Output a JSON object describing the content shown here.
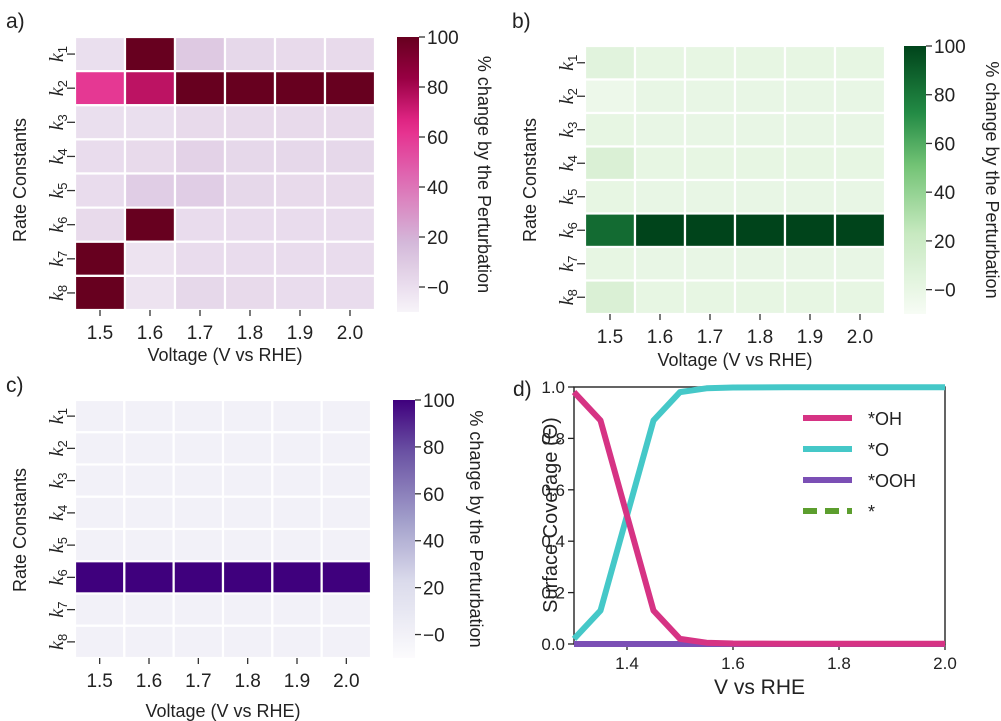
{
  "chart_data": [
    {
      "panel": "a)",
      "type": "heatmap",
      "xlabel": "Voltage (V vs RHE)",
      "ylabel": "Rate Constants",
      "x": [
        "1.5",
        "1.6",
        "1.7",
        "1.8",
        "1.9",
        "2.0"
      ],
      "y": [
        {
          "sym": "k",
          "sub": "1"
        },
        {
          "sym": "k",
          "sub": "2"
        },
        {
          "sym": "k",
          "sub": "3"
        },
        {
          "sym": "k",
          "sub": "4"
        },
        {
          "sym": "k",
          "sub": "5"
        },
        {
          "sym": "k",
          "sub": "6"
        },
        {
          "sym": "k",
          "sub": "7"
        },
        {
          "sym": "k",
          "sub": "8"
        }
      ],
      "values": [
        [
          0,
          100,
          10,
          3,
          2,
          2
        ],
        [
          60,
          75,
          100,
          100,
          100,
          100
        ],
        [
          0,
          0,
          2,
          2,
          2,
          2
        ],
        [
          1,
          2,
          6,
          3,
          3,
          3
        ],
        [
          1,
          8,
          8,
          3,
          2,
          2
        ],
        [
          2,
          100,
          1,
          1,
          1,
          1
        ],
        [
          100,
          -2,
          1,
          1,
          1,
          1
        ],
        [
          100,
          -2,
          3,
          2,
          1,
          1
        ]
      ],
      "colorbar": {
        "label": "% change by the Perturbation",
        "ticks": [
          "100",
          "80",
          "60",
          "40",
          "20",
          "0"
        ],
        "tick_values": [
          100,
          80,
          60,
          40,
          20,
          0
        ],
        "range": [
          -10,
          100
        ],
        "colormap": "PuRd"
      }
    },
    {
      "panel": "b)",
      "type": "heatmap",
      "xlabel": "Voltage (V vs RHE)",
      "ylabel": "Rate Constants",
      "x": [
        "1.5",
        "1.6",
        "1.7",
        "1.8",
        "1.9",
        "2.0"
      ],
      "y": [
        {
          "sym": "k",
          "sub": "1"
        },
        {
          "sym": "k",
          "sub": "2"
        },
        {
          "sym": "k",
          "sub": "3"
        },
        {
          "sym": "k",
          "sub": "4"
        },
        {
          "sym": "k",
          "sub": "5"
        },
        {
          "sym": "k",
          "sub": "6"
        },
        {
          "sym": "k",
          "sub": "7"
        },
        {
          "sym": "k",
          "sub": "8"
        }
      ],
      "values": [
        [
          5,
          1,
          1,
          1,
          1,
          1
        ],
        [
          -3,
          0,
          0,
          0,
          0,
          0
        ],
        [
          1,
          0,
          0,
          0,
          0,
          0
        ],
        [
          10,
          1,
          1,
          1,
          1,
          1
        ],
        [
          1,
          0,
          0,
          0,
          0,
          0
        ],
        [
          85,
          100,
          100,
          100,
          100,
          100
        ],
        [
          1,
          0,
          0,
          0,
          0,
          0
        ],
        [
          10,
          1,
          1,
          1,
          1,
          1
        ]
      ],
      "colorbar": {
        "label": "% change by the Perturbation",
        "ticks": [
          "100",
          "80",
          "60",
          "40",
          "20",
          "0"
        ],
        "tick_values": [
          100,
          80,
          60,
          40,
          20,
          0
        ],
        "range": [
          -10,
          100
        ],
        "colormap": "Greens"
      }
    },
    {
      "panel": "c)",
      "type": "heatmap",
      "xlabel": "Voltage (V vs RHE)",
      "ylabel": "Rate Constants",
      "x": [
        "1.5",
        "1.6",
        "1.7",
        "1.8",
        "1.9",
        "2.0"
      ],
      "y": [
        {
          "sym": "k",
          "sub": "1"
        },
        {
          "sym": "k",
          "sub": "2"
        },
        {
          "sym": "k",
          "sub": "3"
        },
        {
          "sym": "k",
          "sub": "4"
        },
        {
          "sym": "k",
          "sub": "5"
        },
        {
          "sym": "k",
          "sub": "6"
        },
        {
          "sym": "k",
          "sub": "7"
        },
        {
          "sym": "k",
          "sub": "8"
        }
      ],
      "values": [
        [
          0,
          0,
          0,
          0,
          0,
          0
        ],
        [
          0,
          0,
          0,
          0,
          0,
          0
        ],
        [
          0,
          0,
          0,
          0,
          0,
          0
        ],
        [
          0,
          0,
          0,
          0,
          0,
          0
        ],
        [
          0,
          0,
          0,
          0,
          0,
          0
        ],
        [
          100,
          100,
          100,
          100,
          100,
          100
        ],
        [
          0,
          0,
          0,
          0,
          0,
          0
        ],
        [
          0,
          0,
          0,
          0,
          0,
          0
        ]
      ],
      "colorbar": {
        "label": "% change by the Perturbation",
        "ticks": [
          "100",
          "80",
          "60",
          "40",
          "20",
          "0"
        ],
        "tick_values": [
          100,
          80,
          60,
          40,
          20,
          0
        ],
        "range": [
          -10,
          100
        ],
        "colormap": "Purples"
      }
    },
    {
      "panel": "d)",
      "type": "line",
      "xlabel": "V vs RHE",
      "ylabel": "Surface Coverage (Θ)",
      "xlim": [
        1.3,
        2.0
      ],
      "ylim": [
        0.0,
        1.0
      ],
      "xticks": [
        "1.4",
        "1.6",
        "1.8",
        "2.0"
      ],
      "xtick_values": [
        1.4,
        1.6,
        1.8,
        2.0
      ],
      "yticks": [
        "0.0",
        "0.2",
        "0.4",
        "0.6",
        "0.8",
        "1.0"
      ],
      "ytick_values": [
        0.0,
        0.2,
        0.4,
        0.6,
        0.8,
        1.0
      ],
      "x": [
        1.3,
        1.35,
        1.4,
        1.45,
        1.5,
        1.55,
        1.6,
        1.7,
        1.8,
        1.9,
        2.0
      ],
      "series": [
        {
          "name": "*OH",
          "color": "#d63384",
          "dash": false,
          "values": [
            0.98,
            0.87,
            0.5,
            0.13,
            0.02,
            0.005,
            0.002,
            0.001,
            0.001,
            0.001,
            0.001
          ]
        },
        {
          "name": "*O",
          "color": "#45c8c8",
          "dash": false,
          "values": [
            0.02,
            0.13,
            0.5,
            0.87,
            0.98,
            0.995,
            0.998,
            0.999,
            0.999,
            0.999,
            0.999
          ]
        },
        {
          "name": "*OOH",
          "color": "#7b4fb5",
          "dash": false,
          "values": [
            0,
            0,
            0,
            0,
            0,
            0,
            0,
            0,
            0,
            0,
            0
          ]
        },
        {
          "name": "*",
          "color": "#5c9e2e",
          "dash": true,
          "values": [
            0,
            0,
            0,
            0,
            0,
            0,
            0,
            0,
            0,
            0,
            0
          ]
        }
      ],
      "legend_position": "top-right"
    }
  ]
}
